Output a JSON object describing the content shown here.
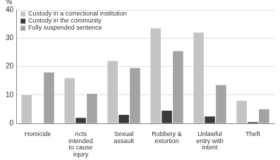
{
  "chart_data": {
    "type": "bar",
    "ylabel": "%",
    "categories": [
      "Homicide",
      "Acts intended to cause injury",
      "Sexual assault",
      "Robbery & extortion",
      "Unlawful entry with intent",
      "Theft"
    ],
    "series": [
      {
        "name": "Custody in a correctional institution",
        "color": "#c4c4c4",
        "values": [
          10,
          16,
          22,
          33.5,
          32,
          8
        ]
      },
      {
        "name": "Custody in the community",
        "color": "#3a3a3a",
        "values": [
          0,
          2,
          3,
          4.5,
          2.5,
          0.5
        ]
      },
      {
        "name": "Fully suspended sentence",
        "color": "#a3a3a3",
        "values": [
          18,
          10.5,
          19.5,
          25.5,
          13.5,
          5
        ]
      }
    ],
    "ylim": [
      0,
      40
    ],
    "yticks": [
      0,
      10,
      20,
      30,
      40
    ],
    "grid": true,
    "legend": "upper left"
  }
}
